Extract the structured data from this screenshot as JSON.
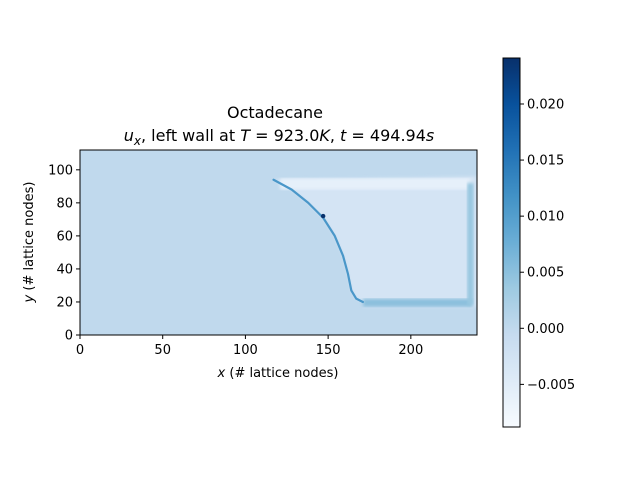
{
  "chart_data": {
    "type": "heatmap",
    "title": "Octadecane",
    "subtitle_parts": {
      "var": "u",
      "var_sub": "x",
      "sep1": ", left wall at ",
      "T_sym": "T",
      "T_eq": " = 923.0",
      "T_unit": "K",
      "sep2": ", ",
      "t_sym": "t",
      "t_eq": " = 494.94",
      "t_unit": "s"
    },
    "xlabel_var": "x",
    "xlabel_rest": " (# lattice nodes)",
    "ylabel_var": "y",
    "ylabel_rest": " (# lattice nodes)",
    "xlim": [
      0,
      240
    ],
    "ylim": [
      0,
      112
    ],
    "x_ticks": [
      0,
      50,
      100,
      150,
      200
    ],
    "x_tick_labels": [
      "0",
      "50",
      "100",
      "150",
      "200"
    ],
    "y_ticks": [
      0,
      20,
      40,
      60,
      80,
      100
    ],
    "y_tick_labels": [
      "0",
      "20",
      "40",
      "60",
      "80",
      "100"
    ],
    "colormap": "Blues",
    "colorbar": {
      "vmin": -0.0088,
      "vmax": 0.0241,
      "ticks": [
        -0.005,
        0,
        0.005,
        0.01,
        0.015,
        0.02
      ],
      "tick_labels": [
        "−0.005",
        "0.000",
        "0.005",
        "0.010",
        "0.015",
        "0.020"
      ]
    },
    "field": {
      "background_value": 0.0,
      "melt_front": [
        [
          117,
          94
        ],
        [
          128,
          88
        ],
        [
          138,
          80
        ],
        [
          147,
          71
        ],
        [
          154,
          60
        ],
        [
          159,
          48
        ],
        [
          162,
          37
        ],
        [
          164,
          27
        ],
        [
          167,
          22
        ],
        [
          171,
          20
        ]
      ],
      "front_value": 0.011,
      "front_peak": [
        147,
        72
      ],
      "front_peak_value": 0.024,
      "liquid_region_value": -0.003,
      "liquid_top_value": -0.006,
      "liquid_bottom_value": 0.005,
      "right_wall_value": 0.004
    }
  }
}
